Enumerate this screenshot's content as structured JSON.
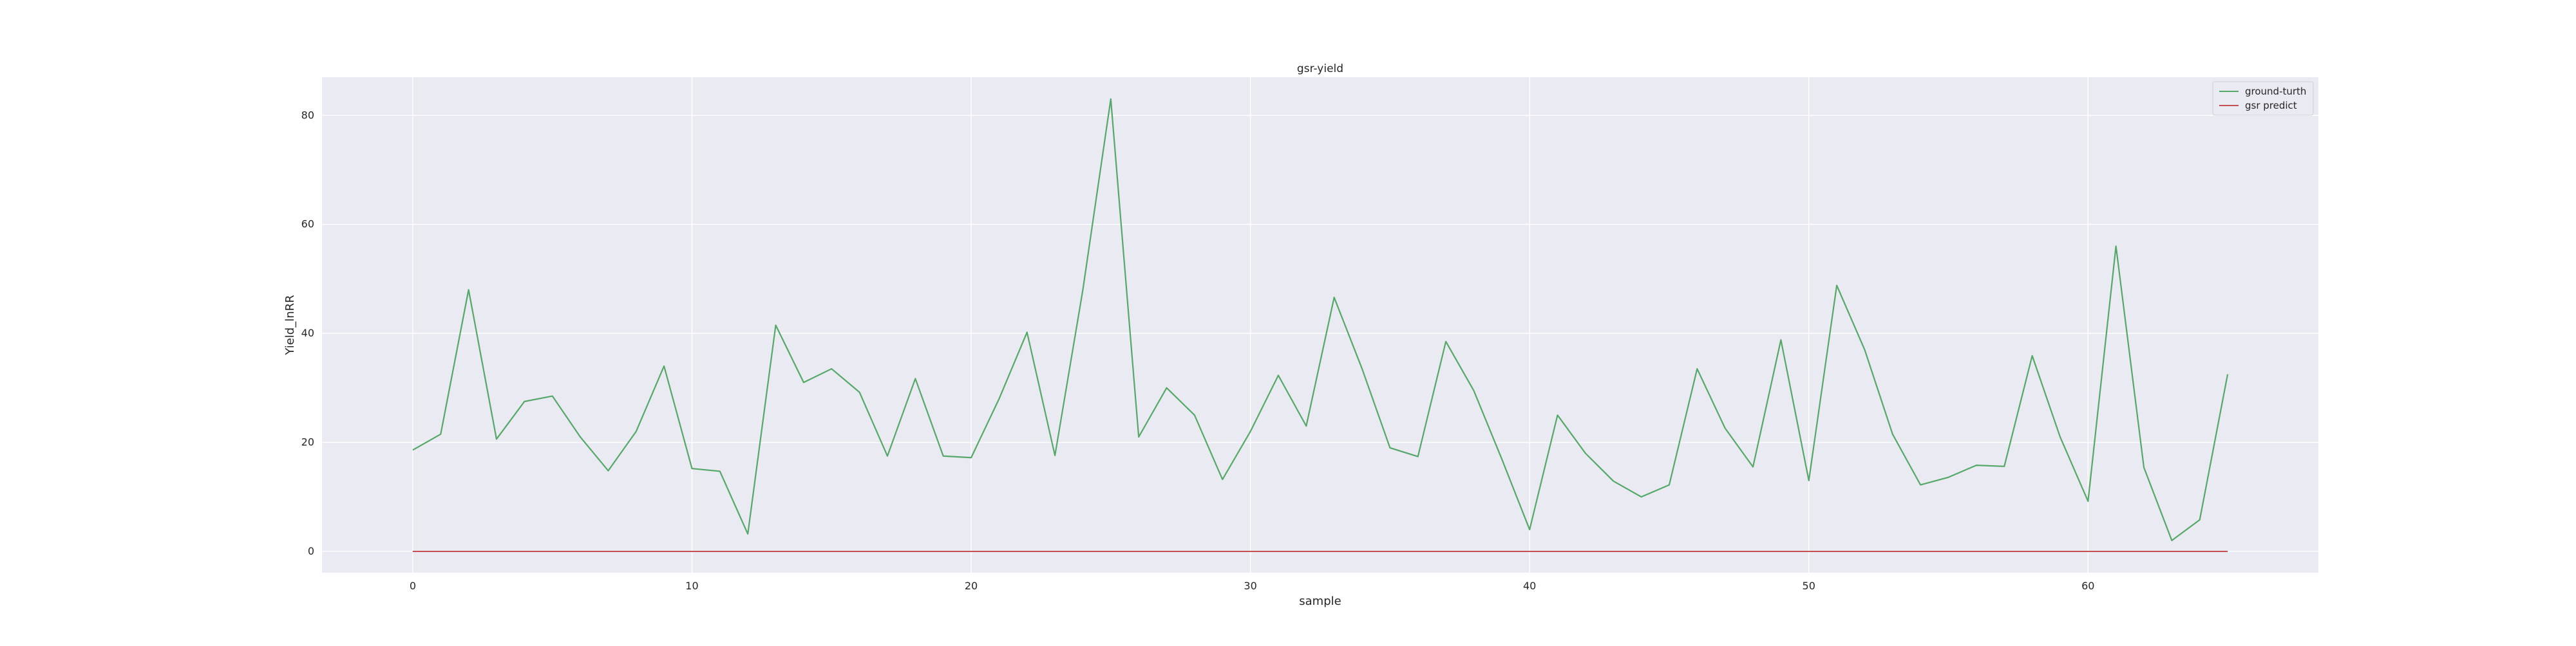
{
  "chart_data": {
    "type": "line",
    "title": "gsr-yield",
    "xlabel": "sample",
    "ylabel": "Yield_lnRR",
    "xlim": [
      -3.25,
      68.25
    ],
    "ylim": [
      -3.9,
      87.0
    ],
    "x_ticks": [
      0,
      10,
      20,
      30,
      40,
      50,
      60
    ],
    "y_ticks": [
      0,
      20,
      40,
      60,
      80
    ],
    "grid": true,
    "background": "#EAEAF2",
    "legend_position": "top-right",
    "series": [
      {
        "name": "ground-turth",
        "color": "#55A868",
        "x": [
          0,
          1,
          2,
          3,
          4,
          5,
          6,
          7,
          8,
          9,
          10,
          11,
          12,
          13,
          14,
          15,
          16,
          17,
          18,
          19,
          20,
          21,
          22,
          23,
          24,
          25,
          26,
          27,
          28,
          29,
          30,
          31,
          32,
          33,
          34,
          35,
          36,
          37,
          38,
          39,
          40,
          41,
          42,
          43,
          44,
          45,
          46,
          47,
          48,
          49,
          50,
          51,
          52,
          53,
          54,
          55,
          56,
          57,
          58,
          59,
          60,
          61,
          62,
          63,
          64,
          65
        ],
        "values": [
          18.6,
          21.5,
          48.0,
          20.6,
          27.5,
          28.5,
          21.0,
          14.8,
          22.0,
          34.0,
          15.2,
          14.7,
          3.2,
          41.5,
          31.0,
          33.5,
          29.2,
          17.5,
          31.7,
          17.5,
          17.2,
          28.0,
          40.2,
          17.6,
          48.0,
          83.0,
          21.0,
          30.0,
          25.0,
          13.2,
          22.0,
          32.3,
          23.0,
          46.6,
          33.5,
          19.0,
          17.4,
          38.5,
          29.5,
          17.0,
          4.0,
          25.0,
          18.0,
          12.9,
          10.0,
          12.2,
          33.5,
          22.6,
          15.5,
          38.8,
          13.0,
          48.8,
          37.0,
          21.5,
          12.2,
          13.6,
          15.8,
          15.6,
          35.9,
          21.0,
          9.2,
          56.0,
          15.4,
          2.0,
          5.8,
          32.5
        ]
      },
      {
        "name": "gsr predict",
        "color": "#C44E52",
        "x": [
          0,
          65
        ],
        "values": [
          0.0,
          0.0
        ]
      }
    ]
  }
}
